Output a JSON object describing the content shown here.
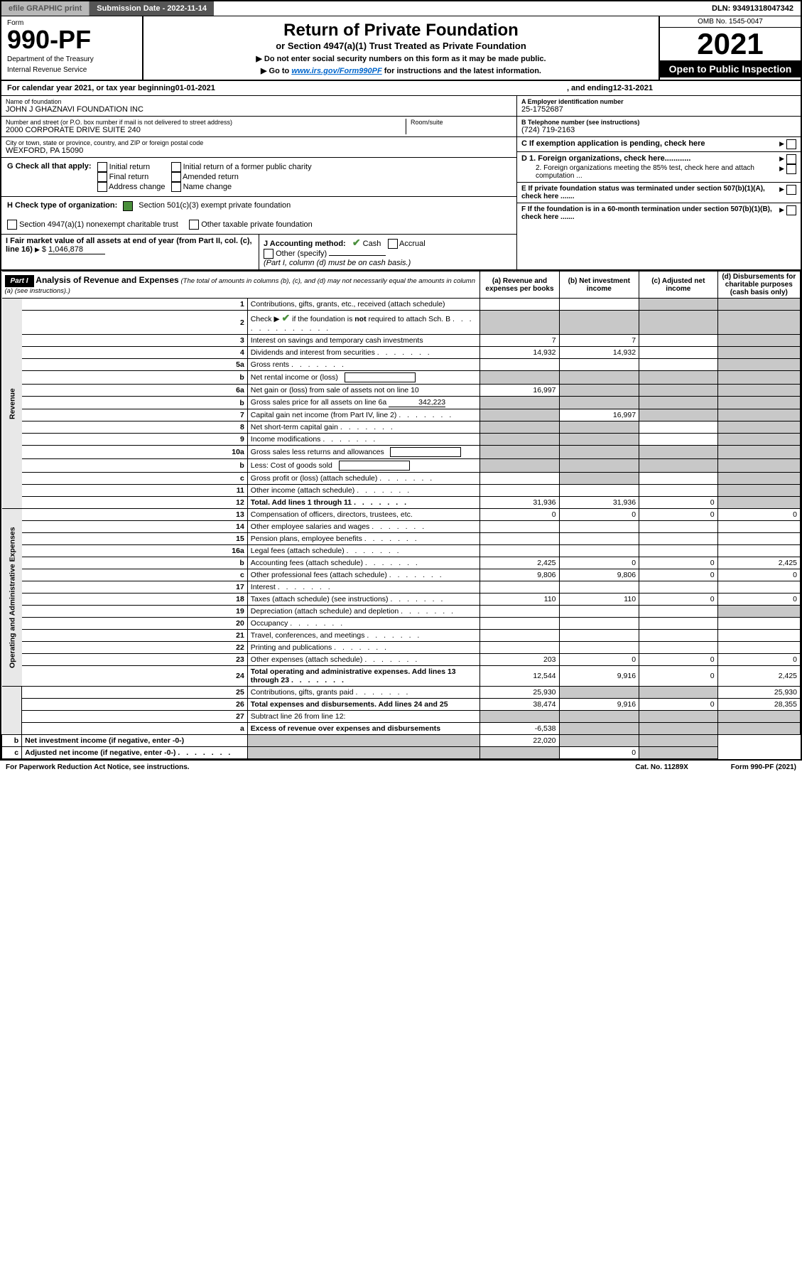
{
  "top": {
    "efile": "efile GRAPHIC print",
    "submission": "Submission Date - 2022-11-14",
    "dln": "DLN: 93491318047342"
  },
  "header": {
    "form_label": "Form",
    "form_num": "990-PF",
    "dept": "Department of the Treasury",
    "irs": "Internal Revenue Service",
    "title": "Return of Private Foundation",
    "subtitle": "or Section 4947(a)(1) Trust Treated as Private Foundation",
    "inst1": "▶ Do not enter social security numbers on this form as it may be made public.",
    "inst2_pre": "▶ Go to ",
    "inst2_link": "www.irs.gov/Form990PF",
    "inst2_post": " for instructions and the latest information.",
    "omb": "OMB No. 1545-0047",
    "year": "2021",
    "public": "Open to Public Inspection"
  },
  "cal": {
    "pre": "For calendar year 2021, or tax year beginning ",
    "begin": "01-01-2021",
    "mid": ", and ending ",
    "end": "12-31-2021"
  },
  "entity": {
    "name_lbl": "Name of foundation",
    "name": "JOHN J GHAZNAVI FOUNDATION INC",
    "addr_lbl": "Number and street (or P.O. box number if mail is not delivered to street address)",
    "addr": "2000 CORPORATE DRIVE SUITE 240",
    "room_lbl": "Room/suite",
    "city_lbl": "City or town, state or province, country, and ZIP or foreign postal code",
    "city": "WEXFORD, PA  15090",
    "ein_lbl": "A Employer identification number",
    "ein": "25-1752687",
    "tel_lbl": "B Telephone number (see instructions)",
    "tel": "(724) 719-2163",
    "c_lbl": "C If exemption application is pending, check here"
  },
  "g": {
    "label": "G Check all that apply:",
    "opts": [
      "Initial return",
      "Final return",
      "Address change",
      "Initial return of a former public charity",
      "Amended return",
      "Name change"
    ]
  },
  "h": {
    "label": "H Check type of organization:",
    "opt1": "Section 501(c)(3) exempt private foundation",
    "opt2": "Section 4947(a)(1) nonexempt charitable trust",
    "opt3": "Other taxable private foundation"
  },
  "i": {
    "label": "I Fair market value of all assets at end of year (from Part II, col. (c), line 16)",
    "val": "1,046,878"
  },
  "j": {
    "label": "J Accounting method:",
    "cash": "Cash",
    "accrual": "Accrual",
    "other": "Other (specify)",
    "note": "(Part I, column (d) must be on cash basis.)"
  },
  "d": {
    "d1": "D 1. Foreign organizations, check here............",
    "d2": "2. Foreign organizations meeting the 85% test, check here and attach computation ..."
  },
  "e": {
    "label": "E  If private foundation status was terminated under section 507(b)(1)(A), check here ......."
  },
  "f": {
    "label": "F  If the foundation is in a 60-month termination under section 507(b)(1)(B), check here ......."
  },
  "part1": {
    "label": "Part I",
    "title": "Analysis of Revenue and Expenses",
    "note": "(The total of amounts in columns (b), (c), and (d) may not necessarily equal the amounts in column (a) (see instructions).)",
    "cols": {
      "a": "(a)  Revenue and expenses per books",
      "b": "(b)  Net investment income",
      "c": "(c)  Adjusted net income",
      "d": "(d)  Disbursements for charitable purposes (cash basis only)"
    }
  },
  "sections": {
    "rev": "Revenue",
    "exp": "Operating and Administrative Expenses"
  },
  "rows": [
    {
      "n": "1",
      "d": "Contributions, gifts, grants, etc., received (attach schedule)",
      "a": "",
      "b": "",
      "c": "s",
      "dd": "s"
    },
    {
      "n": "2",
      "d": "Check ▶ ✔ if the foundation is not required to attach Sch. B",
      "a": "s",
      "b": "s",
      "c": "s",
      "dd": "s",
      "dots": true
    },
    {
      "n": "3",
      "d": "Interest on savings and temporary cash investments",
      "a": "7",
      "b": "7",
      "c": "",
      "dd": "s"
    },
    {
      "n": "4",
      "d": "Dividends and interest from securities",
      "a": "14,932",
      "b": "14,932",
      "c": "",
      "dd": "s",
      "dots": true
    },
    {
      "n": "5a",
      "d": "Gross rents",
      "a": "",
      "b": "",
      "c": "",
      "dd": "s",
      "dots": true
    },
    {
      "n": "b",
      "d": "Net rental income or (loss)",
      "a": "s",
      "b": "s",
      "c": "s",
      "dd": "s",
      "line": true
    },
    {
      "n": "6a",
      "d": "Net gain or (loss) from sale of assets not on line 10",
      "a": "16,997",
      "b": "s",
      "c": "s",
      "dd": "s"
    },
    {
      "n": "b",
      "d": "Gross sales price for all assets on line 6a",
      "sub": "342,223",
      "a": "s",
      "b": "s",
      "c": "s",
      "dd": "s"
    },
    {
      "n": "7",
      "d": "Capital gain net income (from Part IV, line 2)",
      "a": "s",
      "b": "16,997",
      "c": "s",
      "dd": "s",
      "dots": true
    },
    {
      "n": "8",
      "d": "Net short-term capital gain",
      "a": "s",
      "b": "s",
      "c": "",
      "dd": "s",
      "dots": true
    },
    {
      "n": "9",
      "d": "Income modifications",
      "a": "s",
      "b": "s",
      "c": "",
      "dd": "s",
      "dots": true
    },
    {
      "n": "10a",
      "d": "Gross sales less returns and allowances",
      "a": "s",
      "b": "s",
      "c": "s",
      "dd": "s",
      "line": true
    },
    {
      "n": "b",
      "d": "Less: Cost of goods sold",
      "a": "s",
      "b": "s",
      "c": "s",
      "dd": "s",
      "dots": true,
      "line": true
    },
    {
      "n": "c",
      "d": "Gross profit or (loss) (attach schedule)",
      "a": "",
      "b": "s",
      "c": "",
      "dd": "s",
      "dots": true
    },
    {
      "n": "11",
      "d": "Other income (attach schedule)",
      "a": "",
      "b": "",
      "c": "",
      "dd": "s",
      "dots": true
    },
    {
      "n": "12",
      "d": "Total. Add lines 1 through 11",
      "a": "31,936",
      "b": "31,936",
      "c": "0",
      "dd": "s",
      "bold": true,
      "dots": true
    },
    {
      "n": "13",
      "d": "Compensation of officers, directors, trustees, etc.",
      "a": "0",
      "b": "0",
      "c": "0",
      "dd": "0"
    },
    {
      "n": "14",
      "d": "Other employee salaries and wages",
      "a": "",
      "b": "",
      "c": "",
      "dd": "",
      "dots": true
    },
    {
      "n": "15",
      "d": "Pension plans, employee benefits",
      "a": "",
      "b": "",
      "c": "",
      "dd": "",
      "dots": true
    },
    {
      "n": "16a",
      "d": "Legal fees (attach schedule)",
      "a": "",
      "b": "",
      "c": "",
      "dd": "",
      "dots": true
    },
    {
      "n": "b",
      "d": "Accounting fees (attach schedule)",
      "a": "2,425",
      "b": "0",
      "c": "0",
      "dd": "2,425",
      "dots": true
    },
    {
      "n": "c",
      "d": "Other professional fees (attach schedule)",
      "a": "9,806",
      "b": "9,806",
      "c": "0",
      "dd": "0",
      "dots": true
    },
    {
      "n": "17",
      "d": "Interest",
      "a": "",
      "b": "",
      "c": "",
      "dd": "",
      "dots": true
    },
    {
      "n": "18",
      "d": "Taxes (attach schedule) (see instructions)",
      "a": "110",
      "b": "110",
      "c": "0",
      "dd": "0",
      "dots": true
    },
    {
      "n": "19",
      "d": "Depreciation (attach schedule) and depletion",
      "a": "",
      "b": "",
      "c": "",
      "dd": "s",
      "dots": true
    },
    {
      "n": "20",
      "d": "Occupancy",
      "a": "",
      "b": "",
      "c": "",
      "dd": "",
      "dots": true
    },
    {
      "n": "21",
      "d": "Travel, conferences, and meetings",
      "a": "",
      "b": "",
      "c": "",
      "dd": "",
      "dots": true
    },
    {
      "n": "22",
      "d": "Printing and publications",
      "a": "",
      "b": "",
      "c": "",
      "dd": "",
      "dots": true
    },
    {
      "n": "23",
      "d": "Other expenses (attach schedule)",
      "a": "203",
      "b": "0",
      "c": "0",
      "dd": "0",
      "dots": true
    },
    {
      "n": "24",
      "d": "Total operating and administrative expenses. Add lines 13 through 23",
      "a": "12,544",
      "b": "9,916",
      "c": "0",
      "dd": "2,425",
      "bold": true,
      "dots": true
    },
    {
      "n": "25",
      "d": "Contributions, gifts, grants paid",
      "a": "25,930",
      "b": "s",
      "c": "s",
      "dd": "25,930",
      "dots": true
    },
    {
      "n": "26",
      "d": "Total expenses and disbursements. Add lines 24 and 25",
      "a": "38,474",
      "b": "9,916",
      "c": "0",
      "dd": "28,355",
      "bold": true
    },
    {
      "n": "27",
      "d": "Subtract line 26 from line 12:",
      "a": "s",
      "b": "s",
      "c": "s",
      "dd": "s"
    },
    {
      "n": "a",
      "d": "Excess of revenue over expenses and disbursements",
      "a": "-6,538",
      "b": "s",
      "c": "s",
      "dd": "s",
      "bold": true
    },
    {
      "n": "b",
      "d": "Net investment income (if negative, enter -0-)",
      "a": "s",
      "b": "22,020",
      "c": "s",
      "dd": "s",
      "bold": true
    },
    {
      "n": "c",
      "d": "Adjusted net income (if negative, enter -0-)",
      "a": "s",
      "b": "s",
      "c": "0",
      "dd": "s",
      "bold": true,
      "dots": true
    }
  ],
  "footer": {
    "left": "For Paperwork Reduction Act Notice, see instructions.",
    "mid": "Cat. No. 11289X",
    "right": "Form 990-PF (2021)"
  }
}
